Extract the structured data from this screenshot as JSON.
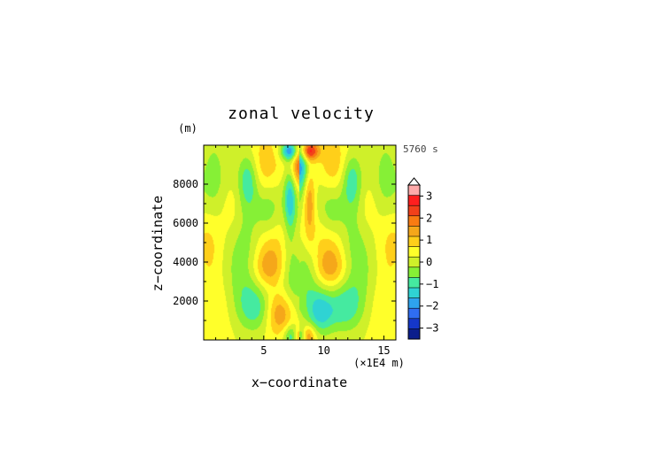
{
  "chart_data": {
    "type": "heatmap",
    "title": "zonal velocity",
    "xlabel": "x−coordinate",
    "ylabel": "z−coordinate",
    "y_unit_label": "(m)",
    "x_unit_label": "(×1E4 m)",
    "time_label": "5760 s",
    "xlim": [
      0,
      16
    ],
    "ylim": [
      0,
      10000
    ],
    "x_ticks": [
      5,
      10,
      15
    ],
    "y_ticks": [
      2000,
      4000,
      6000,
      8000
    ],
    "colorbar": {
      "min": -3.5,
      "max": 3.5,
      "step": 0.5,
      "extend": "max",
      "tick_labels": [
        "3",
        "2",
        "1",
        "0",
        "−1",
        "−2",
        "−3"
      ],
      "tick_values": [
        3,
        2,
        1,
        0,
        -1,
        -2,
        -3
      ],
      "colors": [
        "#0b1e8c",
        "#1537c9",
        "#2f6df2",
        "#2ea3ee",
        "#2fd3d3",
        "#45eaa0",
        "#86f036",
        "#cff02a",
        "#ffff2a",
        "#ffcf1a",
        "#f5a71a",
        "#f97b12",
        "#f2401a",
        "#ff1f1f",
        "#ffaaaa"
      ]
    }
  }
}
